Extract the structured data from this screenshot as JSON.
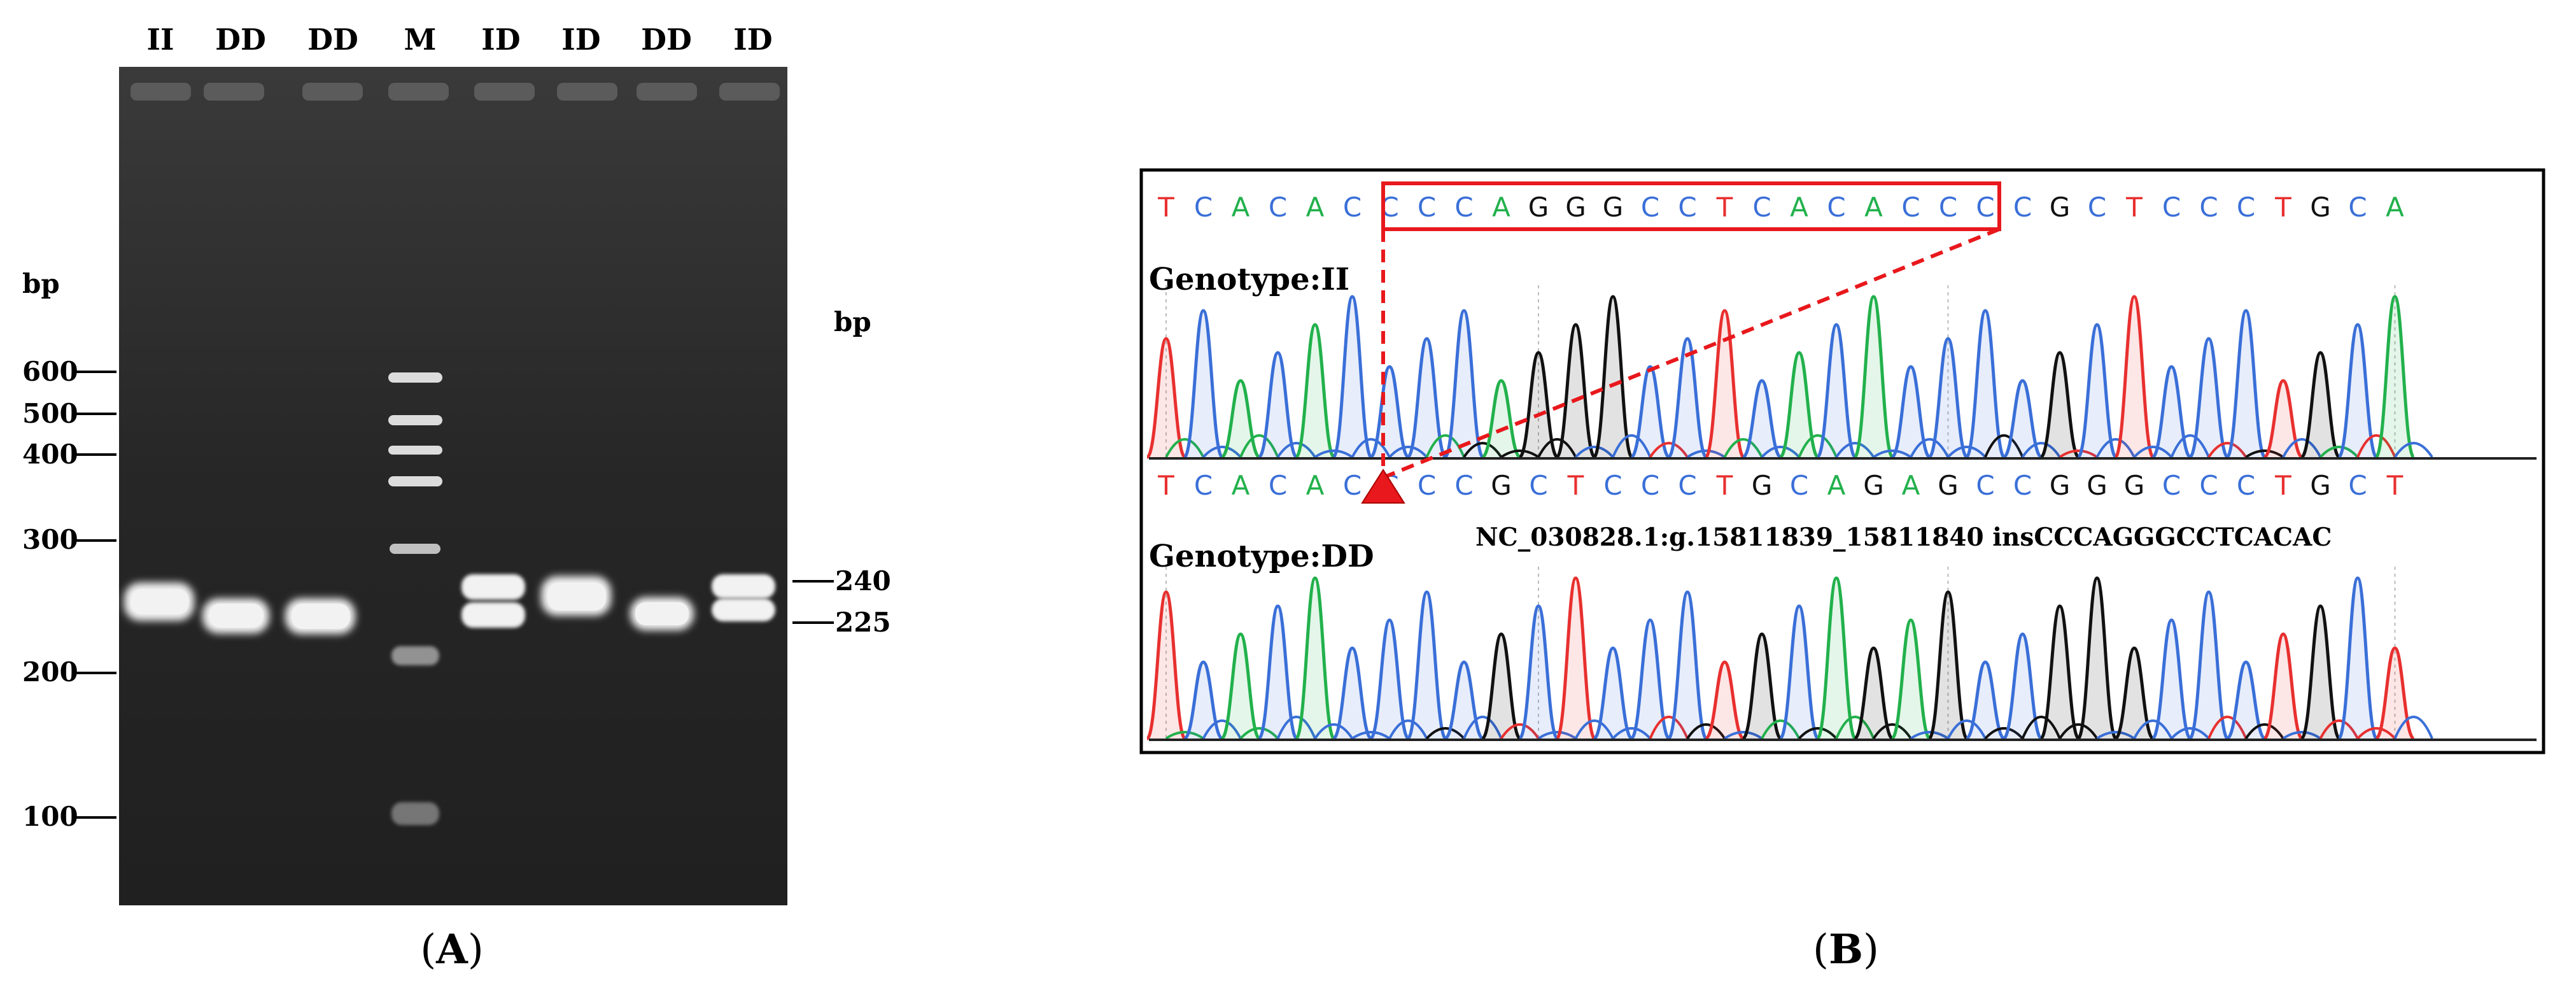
{
  "gel": {
    "lane_labels": [
      "II",
      "DD",
      "DD",
      "M",
      "ID",
      "ID",
      "DD",
      "ID"
    ],
    "marker_unit_left": "bp",
    "marker_unit_right": "bp",
    "ladder_labels": [
      "600",
      "500",
      "400",
      "300",
      "200",
      "100"
    ],
    "band_labels": [
      "240",
      "225"
    ],
    "panel_label": "(A)",
    "panel_letter": "A"
  },
  "chromatogram": {
    "top_sequence": [
      "T",
      "C",
      "A",
      "C",
      "A",
      "C",
      "C",
      "C",
      "C",
      "A",
      "G",
      "G",
      "G",
      "C",
      "C",
      "T",
      "C",
      "A",
      "C",
      "A",
      "C",
      "C",
      "C",
      "C",
      "G",
      "C",
      "T",
      "C",
      "C",
      "C",
      "T",
      "G",
      "C",
      "A"
    ],
    "bottom_sequence": [
      "T",
      "C",
      "A",
      "C",
      "A",
      "C",
      "C",
      "C",
      "C",
      "G",
      "C",
      "T",
      "C",
      "C",
      "C",
      "T",
      "G",
      "C",
      "A",
      "G",
      "A",
      "G",
      "C",
      "C",
      "G",
      "G",
      "G",
      "C",
      "C",
      "C",
      "T",
      "G",
      "C",
      "T"
    ],
    "genotype_top": "Genotype:II",
    "genotype_bottom": "Genotype:DD",
    "insertion_note": "NC_030828.1:g.15811839_15811840 insCCCAGGGCCTCACAC",
    "panel_label": "(B)",
    "panel_letter": "B"
  },
  "colors": {
    "A": "#22b14c",
    "C": "#3a6fd8",
    "G": "#111111",
    "T": "#e8302f",
    "highlight": "#e8181c",
    "gel_bg": "#2a2a2a",
    "gel_band": "#f4f4f4"
  }
}
